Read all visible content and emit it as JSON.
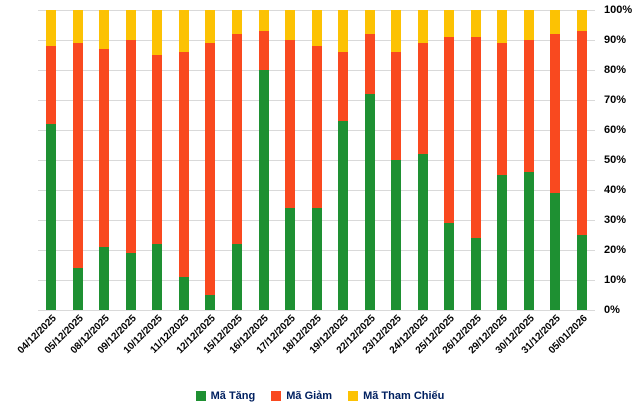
{
  "chart_data": {
    "type": "bar",
    "stacked": true,
    "percent": true,
    "title": "",
    "xlabel": "",
    "ylabel": "",
    "ylim": [
      0,
      100
    ],
    "ytick_step": 10,
    "ytick_labels": [
      "0%",
      "10%",
      "20%",
      "30%",
      "40%",
      "50%",
      "60%",
      "70%",
      "80%",
      "90%",
      "100%"
    ],
    "grid": true,
    "legend_position": "bottom",
    "categories": [
      "04/12/2025",
      "05/12/2025",
      "08/12/2025",
      "09/12/2025",
      "10/12/2025",
      "11/12/2025",
      "12/12/2025",
      "15/12/2025",
      "16/12/2025",
      "17/12/2025",
      "18/12/2025",
      "19/12/2025",
      "22/12/2025",
      "23/12/2025",
      "24/12/2025",
      "25/12/2025",
      "26/12/2025",
      "29/12/2025",
      "30/12/2025",
      "31/12/2025",
      "05/01/2026"
    ],
    "series": [
      {
        "name": "Mã Tăng",
        "color": "#1e9032",
        "values": [
          62,
          14,
          21,
          19,
          22,
          11,
          5,
          22,
          80,
          34,
          34,
          63,
          72,
          50,
          52,
          29,
          24,
          45,
          46,
          39,
          25
        ]
      },
      {
        "name": "Mã Giảm",
        "color": "#f9491f",
        "values": [
          26,
          75,
          66,
          71,
          63,
          75,
          84,
          70,
          13,
          56,
          54,
          23,
          20,
          36,
          37,
          62,
          67,
          44,
          44,
          53,
          68
        ]
      },
      {
        "name": "Mã Tham Chiếu",
        "color": "#fcc203",
        "values": [
          12,
          11,
          13,
          10,
          15,
          14,
          11,
          8,
          7,
          10,
          12,
          14,
          8,
          14,
          11,
          9,
          9,
          11,
          10,
          8,
          7
        ]
      }
    ]
  },
  "colors": {
    "grid": "#d9d9d9",
    "axis_text": "#000000",
    "legend_text": "#002060",
    "background": "#ffffff"
  }
}
